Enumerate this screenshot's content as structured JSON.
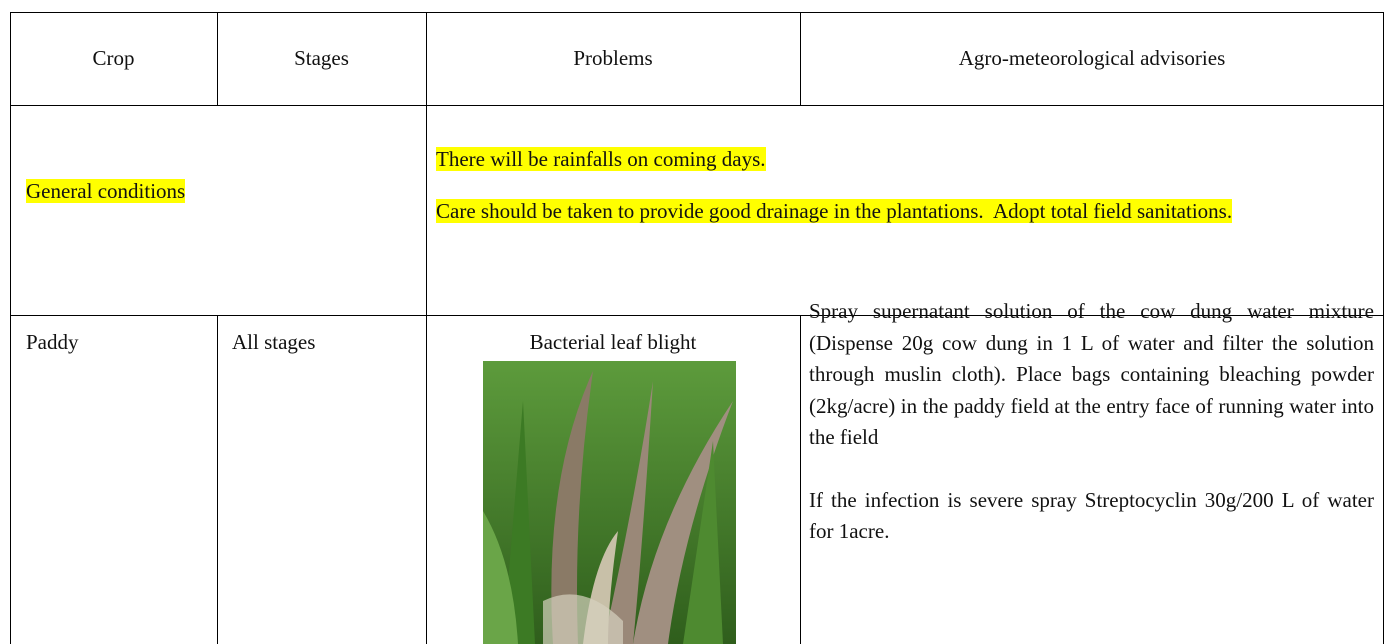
{
  "table": {
    "header": [
      "Crop",
      "Stages",
      "Problems",
      "Agro-meteorological advisories"
    ],
    "rows": [
      {
        "label": "General conditions",
        "lines": [
          "There will be rainfalls on coming days.",
          "Care should be taken to provide good drainage in the plantations.  Adopt total field sanitations."
        ]
      },
      {
        "crop": "Paddy",
        "stage": "All stages",
        "problem": "Bacterial leaf blight",
        "advisories": [
          "Spray supernatant solution of the cow dung water mixture (Dispense 20g cow dung in 1 L of water and filter the solution through muslin cloth). Place bags containing bleaching powder (2kg/acre) in the paddy field at the entry face of running water into the field",
          "If the infection is severe spray Streptocyclin 30g/200 L of water for 1acre."
        ]
      }
    ]
  }
}
